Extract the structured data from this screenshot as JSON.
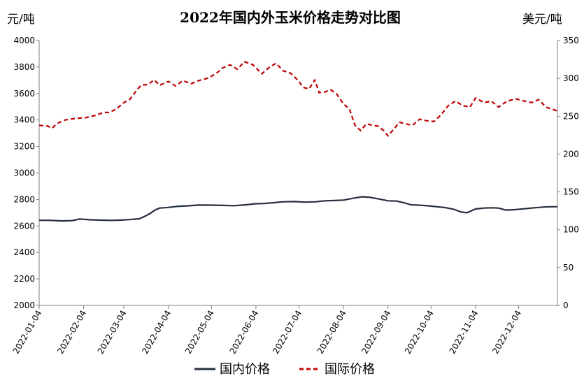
{
  "chart_data": {
    "type": "line",
    "title": "2022年国内外玉米价格走势对比图",
    "ylabel_left": "元/吨",
    "ylabel_right": "美元/吨",
    "ylim_left": [
      2000,
      4000
    ],
    "yticks_left": [
      "4000",
      "3800",
      "3600",
      "3400",
      "3200",
      "3000",
      "2800",
      "2600",
      "2400",
      "2200",
      "2000"
    ],
    "ylim_right": [
      0,
      350
    ],
    "yticks_right": [
      "350",
      "300",
      "250",
      "200",
      "150",
      "100",
      "50",
      "0"
    ],
    "xlim": [
      "2022-01-04",
      "2022-12-31"
    ],
    "xticks": [
      "2022-01-04",
      "2022-02-04",
      "2022-03-04",
      "2022-04-04",
      "2022-05-04",
      "2022-06-04",
      "2022-07-04",
      "2022-08-04",
      "2022-09-04",
      "2022-10-04",
      "2022-11-04",
      "2022-12-04"
    ],
    "grid": false,
    "legend_position": "bottom",
    "series": [
      {
        "name": "国内价格",
        "axis": "left",
        "color": "#262f3d",
        "style": "solid",
        "points": [
          [
            "2022-01-04",
            2643
          ],
          [
            "2022-01-12",
            2642
          ],
          [
            "2022-01-20",
            2638
          ],
          [
            "2022-01-27",
            2640
          ],
          [
            "2022-02-01",
            2652
          ],
          [
            "2022-02-08",
            2647
          ],
          [
            "2022-02-16",
            2644
          ],
          [
            "2022-02-24",
            2642
          ],
          [
            "2022-03-01",
            2644
          ],
          [
            "2022-03-08",
            2648
          ],
          [
            "2022-03-15",
            2655
          ],
          [
            "2022-03-20",
            2680
          ],
          [
            "2022-03-23",
            2700
          ],
          [
            "2022-03-26",
            2722
          ],
          [
            "2022-03-29",
            2735
          ],
          [
            "2022-04-04",
            2740
          ],
          [
            "2022-04-10",
            2748
          ],
          [
            "2022-04-18",
            2752
          ],
          [
            "2022-04-25",
            2758
          ],
          [
            "2022-05-04",
            2757
          ],
          [
            "2022-05-12",
            2755
          ],
          [
            "2022-05-20",
            2753
          ],
          [
            "2022-05-28",
            2760
          ],
          [
            "2022-06-04",
            2768
          ],
          [
            "2022-06-10",
            2770
          ],
          [
            "2022-06-16",
            2775
          ],
          [
            "2022-06-22",
            2782
          ],
          [
            "2022-07-01",
            2784
          ],
          [
            "2022-07-08",
            2780
          ],
          [
            "2022-07-15",
            2782
          ],
          [
            "2022-07-22",
            2790
          ],
          [
            "2022-07-29",
            2792
          ],
          [
            "2022-08-04",
            2795
          ],
          [
            "2022-08-10",
            2808
          ],
          [
            "2022-08-17",
            2820
          ],
          [
            "2022-08-22",
            2817
          ],
          [
            "2022-08-29",
            2803
          ],
          [
            "2022-09-04",
            2790
          ],
          [
            "2022-09-10",
            2788
          ],
          [
            "2022-09-15",
            2775
          ],
          [
            "2022-09-20",
            2760
          ],
          [
            "2022-09-27",
            2756
          ],
          [
            "2022-10-02",
            2752
          ],
          [
            "2022-10-08",
            2745
          ],
          [
            "2022-10-14",
            2738
          ],
          [
            "2022-10-20",
            2725
          ],
          [
            "2022-10-25",
            2705
          ],
          [
            "2022-10-29",
            2700
          ],
          [
            "2022-11-04",
            2728
          ],
          [
            "2022-11-10",
            2735
          ],
          [
            "2022-11-15",
            2737
          ],
          [
            "2022-11-20",
            2735
          ],
          [
            "2022-11-25",
            2720
          ],
          [
            "2022-12-01",
            2723
          ],
          [
            "2022-12-08",
            2730
          ],
          [
            "2022-12-15",
            2737
          ],
          [
            "2022-12-22",
            2743
          ],
          [
            "2022-12-27",
            2745
          ],
          [
            "2022-12-31",
            2745
          ]
        ]
      },
      {
        "name": "国际价格",
        "axis": "right",
        "color": "#c00000",
        "style": "dashed",
        "points": [
          [
            "2022-01-04",
            238
          ],
          [
            "2022-01-10",
            237
          ],
          [
            "2022-01-13",
            234
          ],
          [
            "2022-01-16",
            240
          ],
          [
            "2022-01-22",
            245
          ],
          [
            "2022-01-29",
            247
          ],
          [
            "2022-02-05",
            248
          ],
          [
            "2022-02-12",
            251
          ],
          [
            "2022-02-18",
            255
          ],
          [
            "2022-02-22",
            255
          ],
          [
            "2022-02-27",
            260
          ],
          [
            "2022-03-04",
            268
          ],
          [
            "2022-03-08",
            272
          ],
          [
            "2022-03-12",
            282
          ],
          [
            "2022-03-16",
            291
          ],
          [
            "2022-03-21",
            292
          ],
          [
            "2022-03-25",
            298
          ],
          [
            "2022-03-29",
            291
          ],
          [
            "2022-04-04",
            296
          ],
          [
            "2022-04-09",
            290
          ],
          [
            "2022-04-14",
            297
          ],
          [
            "2022-04-20",
            293
          ],
          [
            "2022-04-25",
            297
          ],
          [
            "2022-05-01",
            300
          ],
          [
            "2022-05-07",
            306
          ],
          [
            "2022-05-12",
            314
          ],
          [
            "2022-05-17",
            318
          ],
          [
            "2022-05-22",
            312
          ],
          [
            "2022-05-27",
            322
          ],
          [
            "2022-06-02",
            318
          ],
          [
            "2022-06-08",
            306
          ],
          [
            "2022-06-13",
            314
          ],
          [
            "2022-06-18",
            320
          ],
          [
            "2022-06-23",
            310
          ],
          [
            "2022-06-28",
            307
          ],
          [
            "2022-07-03",
            298
          ],
          [
            "2022-07-07",
            288
          ],
          [
            "2022-07-11",
            286
          ],
          [
            "2022-07-15",
            298
          ],
          [
            "2022-07-18",
            281
          ],
          [
            "2022-07-22",
            282
          ],
          [
            "2022-07-26",
            285
          ],
          [
            "2022-07-30",
            280
          ],
          [
            "2022-08-04",
            266
          ],
          [
            "2022-08-08",
            260
          ],
          [
            "2022-08-12",
            238
          ],
          [
            "2022-08-16",
            231
          ],
          [
            "2022-08-20",
            240
          ],
          [
            "2022-08-24",
            238
          ],
          [
            "2022-08-28",
            237
          ],
          [
            "2022-09-01",
            231
          ],
          [
            "2022-09-04",
            224
          ],
          [
            "2022-09-08",
            233
          ],
          [
            "2022-09-12",
            242
          ],
          [
            "2022-09-16",
            240
          ],
          [
            "2022-09-21",
            238
          ],
          [
            "2022-09-26",
            246
          ],
          [
            "2022-10-01",
            244
          ],
          [
            "2022-10-06",
            243
          ],
          [
            "2022-10-11",
            252
          ],
          [
            "2022-10-16",
            264
          ],
          [
            "2022-10-21",
            270
          ],
          [
            "2022-10-26",
            264
          ],
          [
            "2022-10-31",
            262
          ],
          [
            "2022-11-04",
            274
          ],
          [
            "2022-11-10",
            268
          ],
          [
            "2022-11-15",
            270
          ],
          [
            "2022-11-20",
            262
          ],
          [
            "2022-11-26",
            270
          ],
          [
            "2022-12-02",
            273
          ],
          [
            "2022-12-08",
            270
          ],
          [
            "2022-12-13",
            268
          ],
          [
            "2022-12-18",
            272
          ],
          [
            "2022-12-23",
            262
          ],
          [
            "2022-12-31",
            257
          ]
        ]
      }
    ]
  }
}
